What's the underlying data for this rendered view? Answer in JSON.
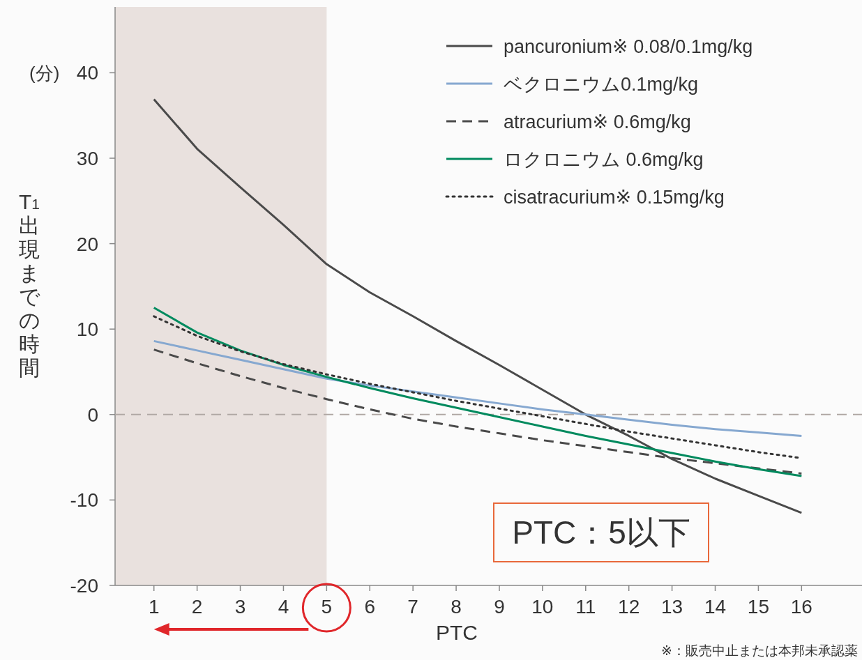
{
  "chart_data": {
    "type": "line",
    "ylabel": "T$_{1}$出現までの時間",
    "xlabel": "PTC",
    "annotations": [
      "(分)",
      "PTC：5以下",
      "※：販売中止または本邦未承認薬"
    ],
    "x": [
      1,
      2,
      3,
      4,
      5,
      6,
      7,
      8,
      9,
      10,
      11,
      12,
      13,
      14,
      15,
      16
    ],
    "xlim": [
      0.1,
      17.4
    ],
    "xticks": [
      1,
      2,
      3,
      4,
      5,
      6,
      7,
      8,
      9,
      10,
      11,
      12,
      13,
      14,
      15,
      16
    ],
    "ylim": [
      -20,
      47.7
    ],
    "yticks": [
      -20,
      -10,
      0,
      10,
      20,
      30,
      40
    ],
    "legend": "top right",
    "marker": "none",
    "bands": [
      {
        "axis": "x",
        "from": 0.1,
        "to": 5,
        "color": "#e9e1de"
      }
    ],
    "ref_lines": [
      {
        "axis": "y",
        "value": 0,
        "color": "#b0a8a4",
        "line_style": "dashed"
      }
    ],
    "series": [
      {
        "name": "pancuronium※ 0.08/0.1mg/kg",
        "color": "#4a4a4a",
        "line_style": "solid",
        "values": [
          36.9,
          31.1,
          26.6,
          22.2,
          17.6,
          14.3,
          11.5,
          8.6,
          5.8,
          2.9,
          0,
          -2.5,
          -5.2,
          -7.5,
          -9.5,
          -11.5
        ]
      },
      {
        "name": "ベクロニウム0.1mg/kg",
        "color": "#86a8d0",
        "line_style": "solid",
        "values": [
          8.6,
          7.5,
          6.4,
          5.3,
          4.2,
          3.4,
          2.7,
          2.0,
          1.3,
          0.6,
          0,
          -0.6,
          -1.2,
          -1.7,
          -2.1,
          -2.5
        ]
      },
      {
        "name": "atracurium※ 0.6mg/kg",
        "color": "#4a4a4a",
        "line_style": "dashed",
        "values": [
          7.6,
          6.0,
          4.5,
          3.1,
          1.8,
          0.6,
          -0.5,
          -1.4,
          -2.2,
          -3.0,
          -3.7,
          -4.4,
          -5.1,
          -5.7,
          -6.3,
          -6.9
        ]
      },
      {
        "name": "ロクロニウム 0.6mg/kg",
        "color": "#008a5e",
        "line_style": "solid",
        "values": [
          12.5,
          9.6,
          7.5,
          5.8,
          4.4,
          3.1,
          1.9,
          0.8,
          -0.3,
          -1.4,
          -2.5,
          -3.5,
          -4.5,
          -5.5,
          -6.4,
          -7.2
        ]
      },
      {
        "name": "cisatracurium※ 0.15mg/kg",
        "color": "#333333",
        "line_style": "dotted",
        "values": [
          11.5,
          9.2,
          7.4,
          5.9,
          4.7,
          3.6,
          2.6,
          1.6,
          0.7,
          -0.2,
          -1.1,
          -2.0,
          -2.8,
          -3.6,
          -4.4,
          -5.1
        ]
      }
    ]
  }
}
